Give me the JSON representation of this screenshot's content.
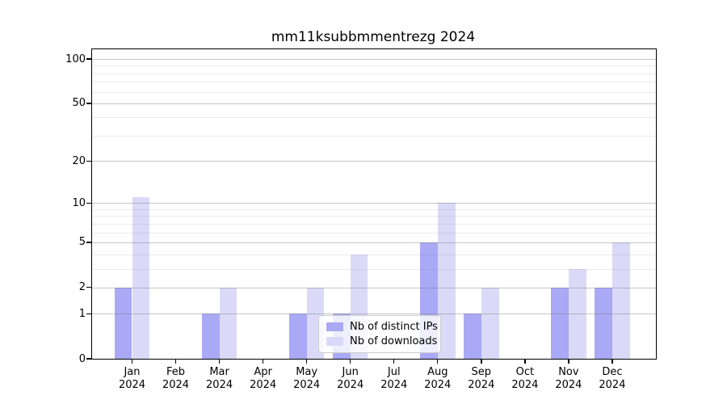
{
  "chart_data": {
    "type": "bar",
    "title": "mm11ksubbmmentrezg 2024",
    "scale": "log10(value+1)",
    "grid": true,
    "legend_position": "bottom-center",
    "categories": [
      "Jan",
      "Feb",
      "Mar",
      "Apr",
      "May",
      "Jun",
      "Jul",
      "Aug",
      "Sep",
      "Oct",
      "Nov",
      "Dec"
    ],
    "year": "2024",
    "series": [
      {
        "name": "Nb of distinct IPs",
        "color": "#a9a9f5",
        "values": [
          2,
          0,
          1,
          0,
          1,
          1,
          0,
          5,
          1,
          0,
          2,
          2
        ]
      },
      {
        "name": "Nb of downloads",
        "color": "#dadaf8",
        "values": [
          11,
          0,
          2,
          0,
          2,
          4,
          0,
          10,
          2,
          0,
          3,
          5
        ]
      }
    ],
    "y_axis": {
      "tick_values": [
        0,
        1,
        2,
        5,
        10,
        20,
        50,
        100
      ],
      "tick_labels": [
        "0",
        "1",
        "2",
        "5",
        "10",
        "20",
        "50",
        "100"
      ],
      "minor_values": [
        3,
        4,
        6,
        7,
        8,
        9,
        30,
        40,
        60,
        70,
        80,
        90
      ],
      "ylim": [
        0,
        114
      ]
    },
    "colors": {
      "distinct_ips": "#a9a9f5",
      "downloads": "#dadaf8",
      "grid_major": "#c9c9c9",
      "grid_minor": "#e9e9e9",
      "spine": "#000000"
    }
  }
}
